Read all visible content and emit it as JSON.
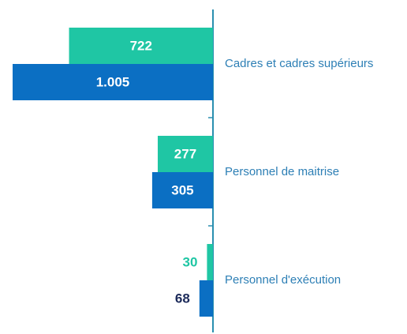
{
  "chart_data": {
    "type": "bar",
    "orientation": "horizontal",
    "categories": [
      "Cadres et cadres supérieurs",
      "Personnel de maitrise",
      "Personnel d'exécution"
    ],
    "series": [
      {
        "color": "#1fc6a4",
        "values": [
          722,
          277,
          30
        ]
      },
      {
        "color": "#0b6fc3",
        "values": [
          1005,
          305,
          68
        ],
        "value_labels": [
          "1.005",
          "305",
          "68"
        ]
      }
    ],
    "xlim": [
      0,
      1005
    ]
  }
}
